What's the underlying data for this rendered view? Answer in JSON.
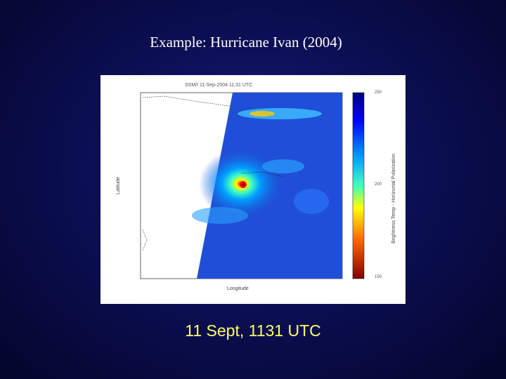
{
  "slide": {
    "title": "Example: Hurricane Ivan (2004)",
    "caption": "11 Sept, 1131 UTC"
  },
  "figure": {
    "plot_title": "SSM/I  11-Sep-2004 11:31 UTC",
    "xlabel": "Longitude",
    "ylabel": "Latitude",
    "colorbar_label": "Brightness Temp - Horizontal Polarization",
    "colorbar_ticks": [
      "250",
      "200",
      "150"
    ],
    "colors": {
      "background": "#0c0f55",
      "caption": "#ffff66",
      "scan_field": "#1f4fd6",
      "eye": "#d10000"
    }
  }
}
